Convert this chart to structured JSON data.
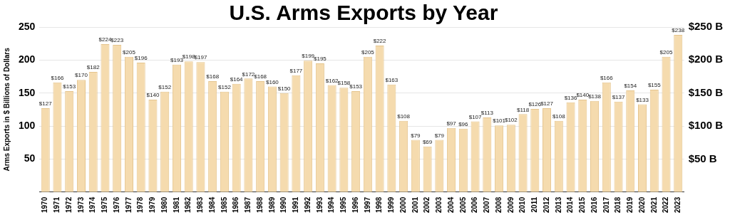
{
  "chart_data": {
    "type": "bar",
    "title": "U.S. Arms Exports by Year",
    "ylabel": "Arms Exports in $ Billions of Dollars",
    "categories": [
      "1970",
      "1971",
      "1972",
      "1973",
      "1974",
      "1975",
      "1976",
      "1977",
      "1978",
      "1979",
      "1980",
      "1981",
      "1982",
      "1983",
      "1984",
      "1985",
      "1986",
      "1987",
      "1988",
      "1989",
      "1990",
      "1991",
      "1992",
      "1993",
      "1994",
      "1995",
      "1996",
      "1997",
      "1998",
      "1999",
      "2000",
      "2001",
      "2002",
      "2003",
      "2004",
      "2005",
      "2006",
      "2007",
      "2008",
      "2009",
      "2010",
      "2011",
      "2012",
      "2013",
      "2014",
      "2015",
      "2016",
      "2017",
      "2018",
      "2019",
      "2020",
      "2021",
      "2022",
      "2023"
    ],
    "values": [
      127,
      166,
      153,
      170,
      182,
      224,
      223,
      205,
      196,
      140,
      152,
      193,
      198,
      197,
      168,
      152,
      164,
      172,
      168,
      160,
      150,
      177,
      199,
      195,
      162,
      158,
      153,
      205,
      222,
      163,
      108,
      79,
      69,
      79,
      97,
      96,
      107,
      113,
      101,
      102,
      118,
      126,
      127,
      108,
      136,
      140,
      138,
      166,
      137,
      154,
      133,
      155,
      205,
      238
    ],
    "value_labels": [
      "$127",
      "$166",
      "$153",
      "$170",
      "$182",
      "$224",
      "$223",
      "$205",
      "$196",
      "$140",
      "$152",
      "$193",
      "$198",
      "$197",
      "$168",
      "$152",
      "$164",
      "$172",
      "$168",
      "$160",
      "$150",
      "$177",
      "$199",
      "$195",
      "$162",
      "$158",
      "$153",
      "$205",
      "$222",
      "$163",
      "$108",
      "$79",
      "$69",
      "$79",
      "$97",
      "$96",
      "$107",
      "$113",
      "$101",
      "$102",
      "$118",
      "$126",
      "$127",
      "$108",
      "$136",
      "$140",
      "$138",
      "$166",
      "$137",
      "$154",
      "$133",
      "$155",
      "$205",
      "$238"
    ],
    "color": "#f5dbae",
    "ylim": [
      0,
      250
    ],
    "yticks": [
      50,
      100,
      150,
      200,
      250
    ],
    "y2lim": [
      0,
      250
    ],
    "y2ticks": [
      {
        "value": 50,
        "label": "$50 B"
      },
      {
        "value": 100,
        "label": "$100 B"
      },
      {
        "value": 150,
        "label": "$150 B"
      },
      {
        "value": 200,
        "label": "$200 B"
      },
      {
        "value": 250,
        "label": "$250 B"
      }
    ],
    "grid": "y",
    "legend": false
  }
}
